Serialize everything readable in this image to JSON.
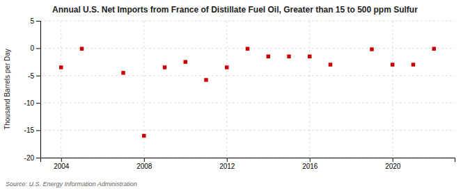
{
  "chart_data": {
    "type": "scatter",
    "title": "Annual U.S. Net Imports from France of Distillate Fuel Oil, Greater than 15 to 500 ppm Sulfur",
    "ylabel": "Thousand Barrels per Day",
    "annotations": [
      "Source: U.S. Energy Information Administration"
    ],
    "x": [
      2004,
      2005,
      2007,
      2008,
      2009,
      2010,
      2011,
      2012,
      2013,
      2014,
      2015,
      2016,
      2017,
      2019,
      2020,
      2021,
      2022
    ],
    "values": [
      -3.5,
      -0.1,
      -4.5,
      -16.0,
      -3.5,
      -2.5,
      -5.8,
      -3.5,
      -0.1,
      -1.5,
      -1.5,
      -1.5,
      -3.0,
      -0.2,
      -3.0,
      -3.0,
      -0.1
    ],
    "color": "#cc0000",
    "marker": "square",
    "xlim": [
      2003.0,
      2023.0
    ],
    "xticks": [
      2004,
      2008,
      2012,
      2016,
      2020
    ],
    "ylim": [
      -20,
      5
    ],
    "yticks": [
      5,
      0,
      -5,
      -10,
      -15,
      -20
    ],
    "grid": true
  }
}
